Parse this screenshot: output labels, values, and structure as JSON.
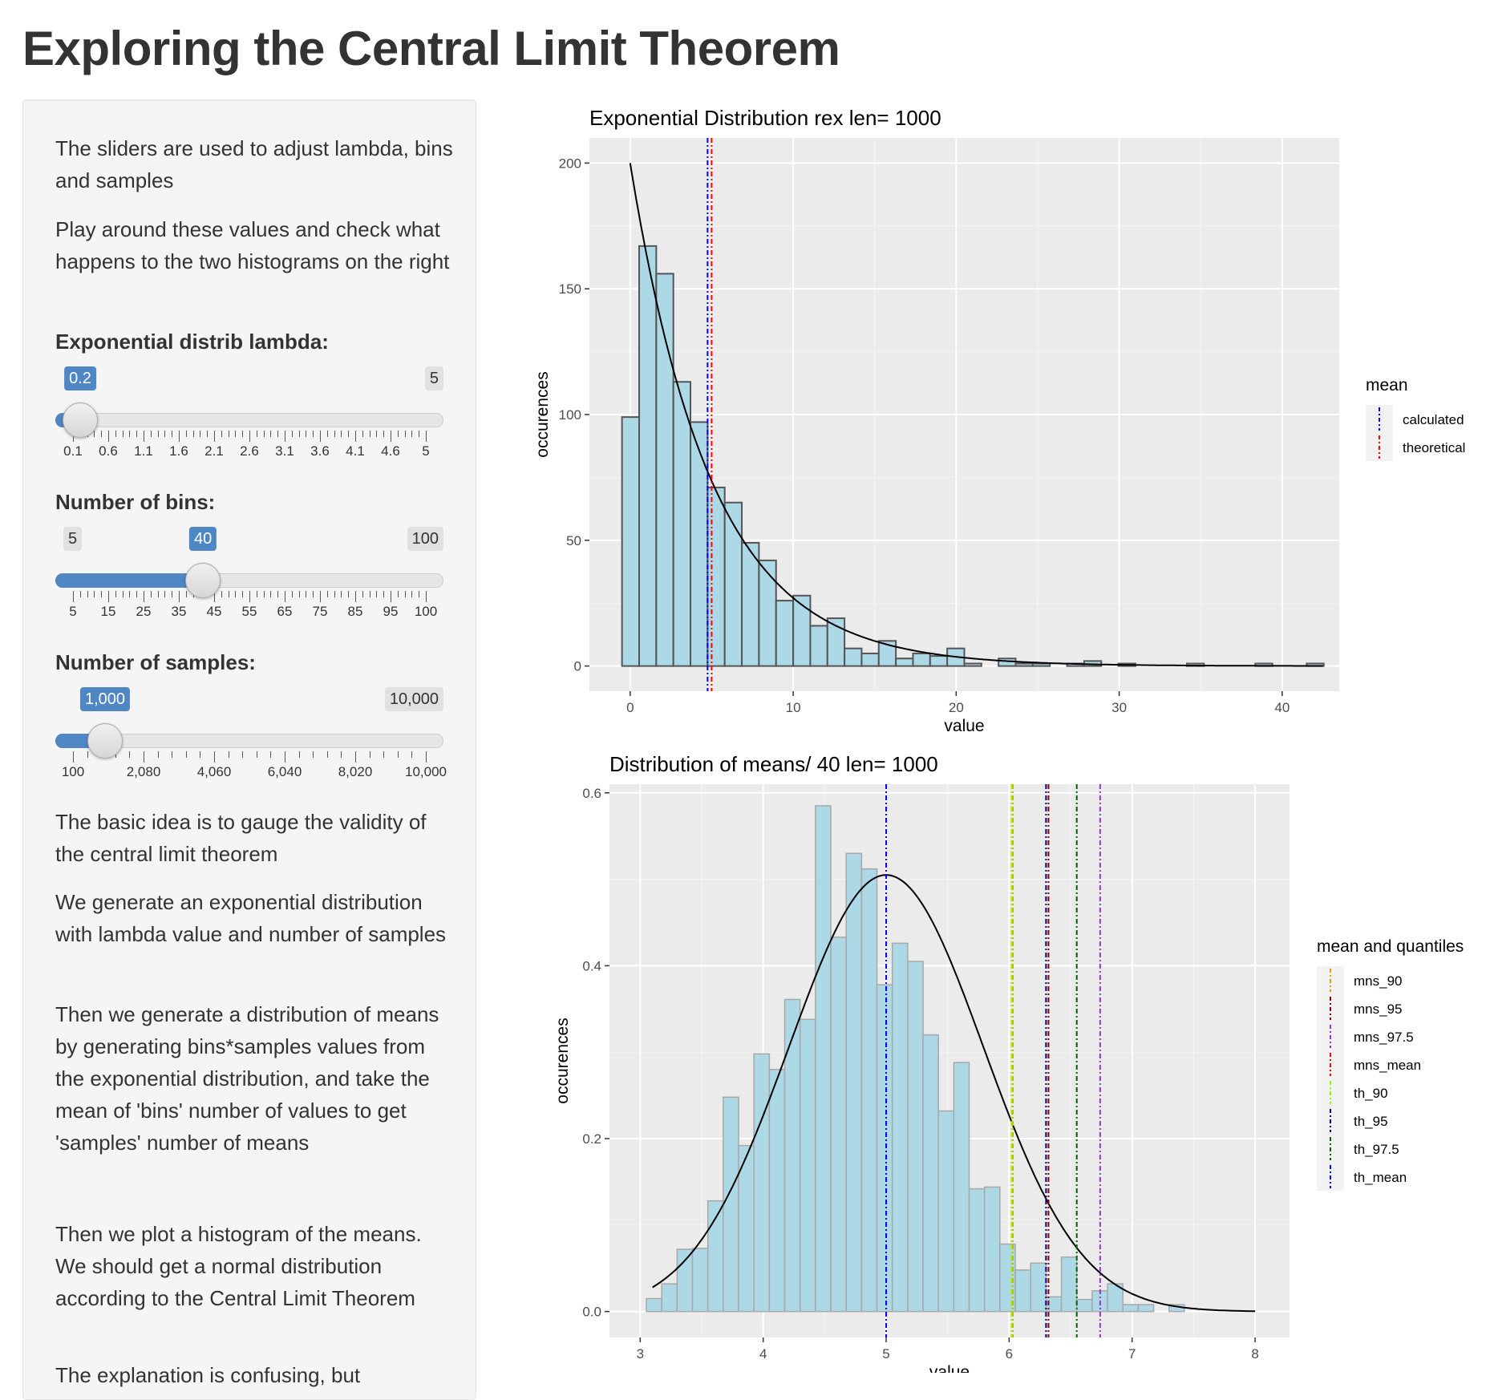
{
  "page": {
    "title": "Exploring the Central Limit Theorem"
  },
  "sidebar": {
    "intro1": "The sliders are used to adjust lambda, bins and samples",
    "intro2": "Play around these values and check what happens to the two histograms on the right",
    "lambda_slider": {
      "label": "Exponential distrib lambda:",
      "value": "0.2",
      "min": "0.1",
      "max": "5",
      "value_num": 0.2,
      "min_num": 0.1,
      "max_num": 5,
      "min_badge": "",
      "max_badge": "5",
      "tick_labels": [
        "0.1",
        "0.6",
        "1.1",
        "1.6",
        "2.1",
        "2.6",
        "3.1",
        "3.6",
        "4.1",
        "4.6",
        "5"
      ]
    },
    "bins_slider": {
      "label": "Number of bins:",
      "value": "40",
      "value_num": 40,
      "min_num": 5,
      "max_num": 100,
      "min_badge": "5",
      "max_badge": "100",
      "tick_labels": [
        "5",
        "15",
        "25",
        "35",
        "45",
        "55",
        "65",
        "75",
        "85",
        "95",
        "100"
      ]
    },
    "samples_slider": {
      "label": "Number of samples:",
      "value": "1,000",
      "value_num": 1000,
      "min_num": 100,
      "max_num": 10000,
      "min_badge": "",
      "max_badge": "10,000",
      "tick_labels": [
        "100",
        "2,080",
        "4,060",
        "6,040",
        "8,020",
        "10,000"
      ]
    },
    "text1": "The basic idea is to gauge the validity of the central limit theorem",
    "text2": "We generate an exponential distribution with lambda value and number of samples",
    "text3": "Then we generate a distribution of means by generating bins*samples values from the exponential distribution, and take the mean of 'bins' number of values to get 'samples' number of means",
    "text4": "Then we plot a histogram of the means. We should get a normal distribution according to the Central Limit Theorem",
    "text5": "The explanation is confusing, but"
  },
  "chart_data": [
    {
      "type": "bar",
      "title": "Exponential Distribution rex len= 1000",
      "xlabel": "value",
      "ylabel": "occurences",
      "xlim": [
        -2.5,
        43.5
      ],
      "ylim": [
        -10,
        210
      ],
      "x_ticks": [
        0,
        10,
        20,
        30,
        40
      ],
      "y_ticks": [
        0,
        50,
        100,
        150,
        200
      ],
      "bin_width": 1.05,
      "bin_start": -0.5,
      "values": [
        99,
        167,
        156,
        113,
        97,
        71,
        65,
        49,
        42,
        26,
        28,
        16,
        19,
        7,
        5,
        10,
        3,
        5,
        4,
        7,
        1,
        0,
        3,
        1,
        1,
        0,
        1,
        2,
        0,
        1,
        0,
        0,
        0,
        1,
        0,
        0,
        0,
        1,
        0,
        0,
        1
      ],
      "fill": "#add8e6",
      "curve": {
        "type": "exponential density",
        "lambda": 0.2,
        "scale": 1000
      },
      "vlines": [
        {
          "name": "calculated",
          "x": 4.75,
          "color": "#0000ff"
        },
        {
          "name": "theoretical",
          "x": 5.0,
          "color": "#ff0000"
        }
      ],
      "legend": {
        "title": "mean",
        "position": "right",
        "entries": [
          "calculated",
          "theoretical"
        ]
      },
      "grid": true
    },
    {
      "type": "bar",
      "title": "Distribution of means/ 40 len= 1000",
      "xlabel": "value",
      "ylabel": "occurences",
      "xlim": [
        2.75,
        8.28
      ],
      "ylim": [
        -0.03,
        0.61
      ],
      "x_ticks": [
        3,
        4,
        5,
        6,
        7,
        8
      ],
      "y_ticks": [
        0.0,
        0.2,
        0.4,
        0.6
      ],
      "y_tick_labels": [
        "0.0",
        "0.2",
        "0.4",
        "0.6"
      ],
      "bin_width": 0.125,
      "bin_start": 3.05,
      "values": [
        0.015,
        0.032,
        0.072,
        0.073,
        0.128,
        0.248,
        0.192,
        0.298,
        0.28,
        0.361,
        0.338,
        0.585,
        0.433,
        0.53,
        0.512,
        0.378,
        0.426,
        0.405,
        0.32,
        0.232,
        0.288,
        0.142,
        0.144,
        0.078,
        0.048,
        0.056,
        0.017,
        0.063,
        0.014,
        0.024,
        0.032,
        0.008,
        0.008,
        0,
        0.008
      ],
      "fill": "#add8e6",
      "curve": {
        "type": "normal density",
        "mean": 5.0,
        "sd": 0.79
      },
      "vlines": [
        {
          "name": "mns_90",
          "x": 6.03,
          "color": "#e69f00"
        },
        {
          "name": "mns_95",
          "x": 6.32,
          "color": "#8b0000"
        },
        {
          "name": "mns_97.5",
          "x": 6.74,
          "color": "#9932cc"
        },
        {
          "name": "mns_mean",
          "x": 5.0,
          "color": "#ff0000"
        },
        {
          "name": "th_90",
          "x": 6.02,
          "color": "#7fff00"
        },
        {
          "name": "th_95",
          "x": 6.3,
          "color": "#00008b"
        },
        {
          "name": "th_97.5",
          "x": 6.55,
          "color": "#006400"
        },
        {
          "name": "th_mean",
          "x": 5.0,
          "color": "#0000ff"
        }
      ],
      "legend": {
        "title": "mean and quantiles",
        "position": "right",
        "entries": [
          "mns_90",
          "mns_95",
          "mns_97.5",
          "mns_mean",
          "th_90",
          "th_95",
          "th_97.5",
          "th_mean"
        ]
      },
      "grid": true
    }
  ]
}
